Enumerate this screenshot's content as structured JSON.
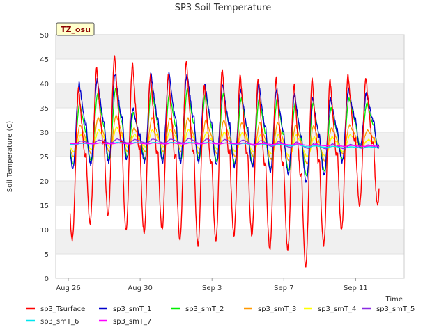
{
  "chart_data": {
    "type": "line",
    "title": "SP3 Soil Temperature",
    "xlabel": "Time",
    "ylabel": "Soil Temperature (C)",
    "ylim": [
      0,
      50
    ],
    "xlim_days": [
      -0.7,
      18.7
    ],
    "y_ticks": [
      0,
      5,
      10,
      15,
      20,
      25,
      30,
      35,
      40,
      45,
      50
    ],
    "x_ticks": [
      {
        "label": "Aug 26",
        "day": 0
      },
      {
        "label": "Aug 30",
        "day": 4
      },
      {
        "label": "Sep 3",
        "day": 8
      },
      {
        "label": "Sep 7",
        "day": 12
      },
      {
        "label": "Sep 11",
        "day": 16
      }
    ],
    "annotation": "TZ_osu",
    "legend_position": "bottom",
    "days": [
      "Aug 26",
      "Aug 27",
      "Aug 28",
      "Aug 29",
      "Aug 30",
      "Aug 31",
      "Sep 1",
      "Sep 2",
      "Sep 3",
      "Sep 4",
      "Sep 5",
      "Sep 6",
      "Sep 7",
      "Sep 8",
      "Sep 9",
      "Sep 10",
      "Sep 11",
      "Sep 12"
    ],
    "start_day": 0.1,
    "end_day": 17.3,
    "series": [
      {
        "name": "sp3_Tsurface",
        "color": "#ff0000",
        "daily_max": [
          39,
          43,
          46,
          44,
          42,
          42,
          45,
          40,
          43,
          42,
          41,
          41,
          40,
          41,
          41,
          42,
          41
        ],
        "daily_min": [
          8,
          11.5,
          13,
          10,
          9.5,
          10,
          8,
          7,
          8,
          9,
          9,
          6,
          6,
          2.5,
          7,
          10,
          15
        ]
      },
      {
        "name": "sp3_smT_1",
        "color": "#0000cc",
        "daily_max": [
          40,
          41,
          42,
          35,
          42,
          42,
          42,
          40,
          40,
          39,
          40,
          39,
          38,
          37,
          37,
          39,
          38
        ],
        "daily_min": [
          22.5,
          23.5,
          24,
          24.5,
          24,
          24,
          24,
          24,
          23.5,
          23,
          23,
          22,
          21.5,
          20,
          21.5,
          24,
          27
        ]
      },
      {
        "name": "sp3_smT_2",
        "color": "#00ee00",
        "daily_max": [
          36,
          38,
          39,
          34,
          39,
          38,
          39,
          38,
          38,
          37,
          37,
          37,
          36,
          36,
          35,
          37,
          36
        ],
        "daily_min": [
          23.5,
          24,
          24.5,
          25,
          24.5,
          24.5,
          24.5,
          24.5,
          24,
          23.5,
          23.5,
          22.5,
          22,
          21,
          22,
          24.5,
          27
        ]
      },
      {
        "name": "sp3_smT_3",
        "color": "#ff9900",
        "daily_max": [
          31.5,
          33,
          33.5,
          31,
          33,
          33,
          33,
          32.5,
          32.5,
          32,
          32,
          32,
          31.5,
          31.5,
          31,
          31.5,
          30.5
        ],
        "daily_min": [
          25,
          25.5,
          26,
          26,
          26,
          26,
          26,
          25.5,
          25.5,
          25,
          25,
          24.5,
          24,
          23.5,
          24,
          25.5,
          27
        ]
      },
      {
        "name": "sp3_smT_4",
        "color": "#ffff00",
        "daily_max": [
          29.5,
          30.5,
          31,
          29.5,
          30.5,
          30.5,
          30.5,
          30,
          30,
          30,
          29.5,
          29.5,
          29.5,
          29,
          29,
          29.5,
          28.5
        ],
        "daily_min": [
          26,
          26.5,
          27,
          27,
          27,
          27,
          27,
          26.5,
          26.5,
          26,
          26,
          25.5,
          25,
          25,
          25,
          26,
          27
        ]
      },
      {
        "name": "sp3_smT_5",
        "color": "#8a2be2",
        "daily_max": [
          28.2,
          28.4,
          28.6,
          28.5,
          28.6,
          28.6,
          28.7,
          28.6,
          28.5,
          28.4,
          28.3,
          28.1,
          28,
          27.8,
          27.6,
          27.5,
          27.4
        ],
        "daily_min": [
          27.6,
          27.7,
          27.8,
          27.8,
          27.8,
          27.8,
          27.8,
          27.7,
          27.6,
          27.5,
          27.3,
          27.1,
          26.9,
          26.7,
          26.6,
          26.6,
          26.7
        ]
      },
      {
        "name": "sp3_smT_6",
        "color": "#00e5ee",
        "daily_max": [
          27.7,
          27.8,
          27.9,
          27.9,
          27.9,
          27.9,
          27.9,
          27.9,
          27.8,
          27.7,
          27.6,
          27.5,
          27.4,
          27.2,
          27.1,
          27,
          27
        ],
        "daily_min": [
          27.5,
          27.6,
          27.7,
          27.7,
          27.7,
          27.7,
          27.7,
          27.7,
          27.6,
          27.5,
          27.4,
          27.3,
          27.2,
          27,
          26.9,
          26.8,
          26.8
        ]
      },
      {
        "name": "sp3_smT_7",
        "color": "#ff00ff",
        "daily_max": [
          27.8,
          27.8,
          27.8,
          27.8,
          27.8,
          27.8,
          27.8,
          27.8,
          27.8,
          27.8,
          27.7,
          27.7,
          27.6,
          27.5,
          27.4,
          27.3,
          27.2
        ],
        "daily_min": [
          27.6,
          27.6,
          27.6,
          27.6,
          27.6,
          27.6,
          27.6,
          27.6,
          27.6,
          27.6,
          27.5,
          27.5,
          27.4,
          27.3,
          27.2,
          27.1,
          27.1
        ]
      }
    ]
  }
}
